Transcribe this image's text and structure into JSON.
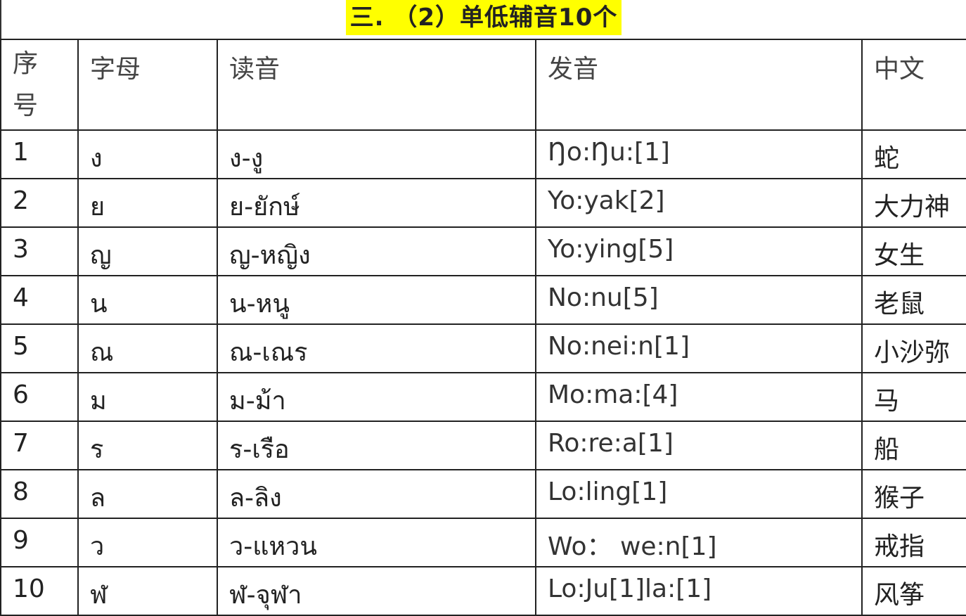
{
  "title": "三. （2）单低辅音10个",
  "title_highlight": "#ffff00",
  "headers": [
    "序号",
    "字母",
    "读音",
    "发音",
    "中文"
  ],
  "rows": [
    {
      "no": "1",
      "letter": "ง",
      "reading": "ง-งู",
      "pron": "Ŋo:Ŋu:[1]",
      "chinese": "蛇"
    },
    {
      "no": "2",
      "letter": "ย",
      "reading": "ย-ยักษ์",
      "pron": "Yo:yak[2]",
      "chinese": "大力神"
    },
    {
      "no": "3",
      "letter": "ญ",
      "reading": "ญ-หญิง",
      "pron": "Yo:ying[5]",
      "chinese": "女生"
    },
    {
      "no": "4",
      "letter": "น",
      "reading": "น-หนู",
      "pron": "No:nu[5]",
      "chinese": "老鼠"
    },
    {
      "no": "5",
      "letter": "ณ",
      "reading": "ณ-เณร",
      "pron": "No:nei:n[1]",
      "chinese": "小沙弥"
    },
    {
      "no": "6",
      "letter": "ม",
      "reading": "ม-ม้า",
      "pron": "Mo:ma:[4]",
      "chinese": "马"
    },
    {
      "no": "7",
      "letter": "ร",
      "reading": "ร-เรือ",
      "pron": "Ro:re:a[1]",
      "chinese": "船"
    },
    {
      "no": "8",
      "letter": "ล",
      "reading": "ล-ลิง",
      "pron": "Lo:ling[1]",
      "chinese": "猴子"
    },
    {
      "no": "9",
      "letter": "ว",
      "reading": "ว-แหวน",
      "pron": "Wo： we:n[1]",
      "chinese": "戒指"
    },
    {
      "no": "10",
      "letter": "ฬ",
      "reading": "ฬ-จุฬา",
      "pron": "Lo:Ju[1]la:[1]",
      "chinese": "风筝"
    }
  ]
}
